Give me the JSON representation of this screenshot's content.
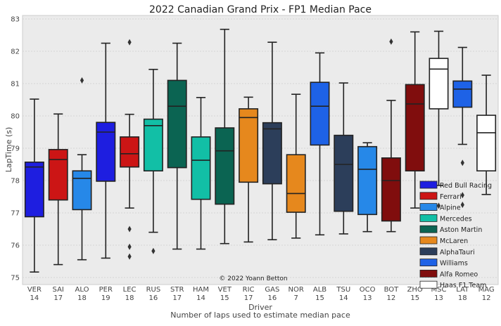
{
  "chart_data": {
    "type": "box",
    "title": "2022 Canadian Grand Prix - FP1 Median Pace",
    "xlabel": "Driver",
    "xlabel2": "Number of laps used to estimate median pace",
    "ylabel": "LapTime (s)",
    "ylim": [
      74.8,
      83.0
    ],
    "yticks": [
      75,
      76,
      77,
      78,
      79,
      80,
      81,
      82,
      83
    ],
    "grid": true,
    "legend_position": "lower right",
    "watermark": "© 2022 Yoann Betton",
    "drivers": [
      {
        "name": "VER",
        "laps": "14",
        "team": "Red Bull Racing",
        "whislo": 75.17,
        "q1": 76.88,
        "med": 78.42,
        "q3": 78.57,
        "whishi": 80.52,
        "fliers": []
      },
      {
        "name": "SAI",
        "laps": "17",
        "team": "Ferrari",
        "whislo": 75.4,
        "q1": 77.4,
        "med": 78.65,
        "q3": 78.96,
        "whishi": 80.06,
        "fliers": []
      },
      {
        "name": "ALO",
        "laps": "18",
        "team": "Alpine",
        "whislo": 75.55,
        "q1": 77.1,
        "med": 78.07,
        "q3": 78.3,
        "whishi": 78.8,
        "fliers": [
          81.1
        ]
      },
      {
        "name": "PER",
        "laps": "19",
        "team": "Red Bull Racing",
        "whislo": 75.6,
        "q1": 77.98,
        "med": 79.5,
        "q3": 79.8,
        "whishi": 82.25,
        "fliers": []
      },
      {
        "name": "LEC",
        "laps": "18",
        "team": "Ferrari",
        "whislo": 77.15,
        "q1": 78.42,
        "med": 78.83,
        "q3": 79.35,
        "whishi": 80.05,
        "fliers": [
          82.28,
          76.5,
          75.95,
          75.65
        ]
      },
      {
        "name": "RUS",
        "laps": "16",
        "team": "Mercedes",
        "whislo": 76.4,
        "q1": 78.3,
        "med": 79.7,
        "q3": 79.9,
        "whishi": 81.44,
        "fliers": [
          75.82
        ]
      },
      {
        "name": "STR",
        "laps": "17",
        "team": "Aston Martin",
        "whislo": 75.88,
        "q1": 78.4,
        "med": 80.3,
        "q3": 81.1,
        "whishi": 82.25,
        "fliers": []
      },
      {
        "name": "HAM",
        "laps": "14",
        "team": "Mercedes",
        "whislo": 75.88,
        "q1": 77.42,
        "med": 78.63,
        "q3": 79.35,
        "whishi": 80.57,
        "fliers": []
      },
      {
        "name": "VET",
        "laps": "15",
        "team": "Aston Martin",
        "whislo": 76.05,
        "q1": 77.27,
        "med": 78.92,
        "q3": 79.63,
        "whishi": 82.68,
        "fliers": []
      },
      {
        "name": "RIC",
        "laps": "17",
        "team": "McLaren",
        "whislo": 76.1,
        "q1": 77.95,
        "med": 79.95,
        "q3": 80.22,
        "whishi": 80.58,
        "fliers": []
      },
      {
        "name": "GAS",
        "laps": "16",
        "team": "AlphaTauri",
        "whislo": 76.17,
        "q1": 77.9,
        "med": 79.6,
        "q3": 79.79,
        "whishi": 82.28,
        "fliers": []
      },
      {
        "name": "NOR",
        "laps": "7",
        "team": "McLaren",
        "whislo": 76.22,
        "q1": 77.02,
        "med": 77.6,
        "q3": 78.8,
        "whishi": 80.67,
        "fliers": []
      },
      {
        "name": "ALB",
        "laps": "15",
        "team": "Williams",
        "whislo": 76.32,
        "q1": 79.1,
        "med": 80.3,
        "q3": 81.04,
        "whishi": 81.95,
        "fliers": []
      },
      {
        "name": "TSU",
        "laps": "14",
        "team": "AlphaTauri",
        "whislo": 76.35,
        "q1": 77.05,
        "med": 78.5,
        "q3": 79.4,
        "whishi": 81.02,
        "fliers": []
      },
      {
        "name": "OCO",
        "laps": "13",
        "team": "Alpine",
        "whislo": 76.42,
        "q1": 76.95,
        "med": 78.35,
        "q3": 79.05,
        "whishi": 79.17,
        "fliers": []
      },
      {
        "name": "BOT",
        "laps": "12",
        "team": "Alfa Romeo",
        "whislo": 76.42,
        "q1": 76.75,
        "med": 78.0,
        "q3": 78.7,
        "whishi": 80.48,
        "fliers": [
          82.3
        ]
      },
      {
        "name": "ZHO",
        "laps": "15",
        "team": "Alfa Romeo",
        "whislo": 77.15,
        "q1": 78.3,
        "med": 80.37,
        "q3": 80.97,
        "whishi": 82.6,
        "fliers": []
      },
      {
        "name": "MSC",
        "laps": "13",
        "team": "Haas F1 Team",
        "whislo": 77.85,
        "q1": 80.22,
        "med": 81.45,
        "q3": 81.78,
        "whishi": 82.62,
        "fliers": [
          77.22
        ]
      },
      {
        "name": "LAT",
        "laps": "18",
        "team": "Williams",
        "whislo": 79.12,
        "q1": 80.27,
        "med": 80.83,
        "q3": 81.08,
        "whishi": 82.12,
        "fliers": [
          78.55,
          77.55,
          77.25
        ]
      },
      {
        "name": "MAG",
        "laps": "12",
        "team": "Haas F1 Team",
        "whislo": 77.57,
        "q1": 78.3,
        "med": 79.48,
        "q3": 80.02,
        "whishi": 81.26,
        "fliers": []
      }
    ],
    "legend": [
      {
        "label": "Red Bull Racing",
        "color": "#1e1ee0"
      },
      {
        "label": "Ferrari",
        "color": "#cc1515"
      },
      {
        "label": "Alpine",
        "color": "#2688e8"
      },
      {
        "label": "Mercedes",
        "color": "#12bfa6"
      },
      {
        "label": "Aston Martin",
        "color": "#0b6452"
      },
      {
        "label": "McLaren",
        "color": "#e6881d"
      },
      {
        "label": "AlphaTauri",
        "color": "#2c3e5a"
      },
      {
        "label": "Williams",
        "color": "#1e62e6"
      },
      {
        "label": "Alfa Romeo",
        "color": "#800d0d"
      },
      {
        "label": "Haas F1 Team",
        "color": "#ffffff"
      }
    ]
  }
}
